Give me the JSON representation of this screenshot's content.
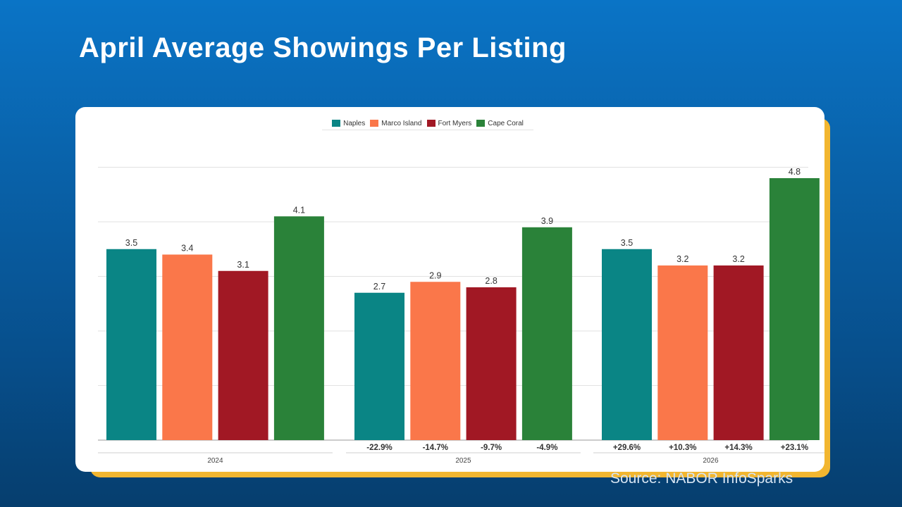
{
  "slide": {
    "title": "April Average Showings Per Listing",
    "source": "Source:  NABOR InfoSparks"
  },
  "colors": {
    "Naples": "#0a8585",
    "Marco Island": "#fa774a",
    "Fort Myers": "#a11824",
    "Cape Coral": "#2a8239"
  },
  "chart_data": {
    "type": "bar",
    "categories": [
      "2024",
      "2025",
      "2026"
    ],
    "series": [
      {
        "name": "Naples",
        "values": [
          3.5,
          2.7,
          3.5
        ],
        "change_labels": [
          "",
          "-22.9%",
          "+29.6%"
        ]
      },
      {
        "name": "Marco Island",
        "values": [
          3.4,
          2.9,
          3.2
        ],
        "change_labels": [
          "",
          "-14.7%",
          "+10.3%"
        ]
      },
      {
        "name": "Fort Myers",
        "values": [
          3.1,
          2.8,
          3.2
        ],
        "change_labels": [
          "",
          "-9.7%",
          "+14.3%"
        ]
      },
      {
        "name": "Cape Coral",
        "values": [
          4.1,
          3.9,
          4.8
        ],
        "change_labels": [
          "",
          "-4.9%",
          "+23.1%"
        ]
      }
    ],
    "ylim": [
      0,
      5
    ],
    "grid": true,
    "legend_position": "top-center",
    "title": "",
    "xlabel": "",
    "ylabel": ""
  }
}
